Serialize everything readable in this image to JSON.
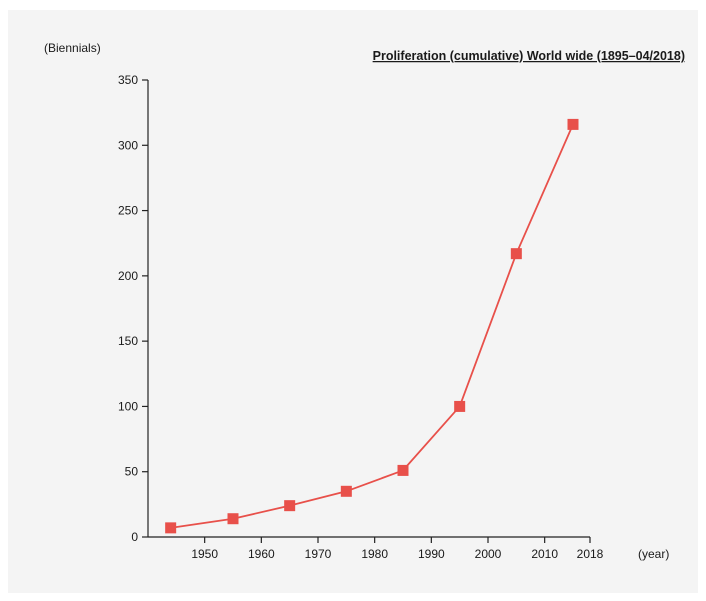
{
  "chart_data": {
    "type": "line",
    "title": "Proliferation (cumulative) World wide (1895–04/2018)",
    "ylabel": "(Biennials)",
    "xlabel": "(year)",
    "ylim": [
      0,
      350
    ],
    "xlim": [
      1940,
      2018
    ],
    "y_ticks": [
      0,
      50,
      100,
      150,
      200,
      250,
      300,
      350
    ],
    "x_ticks": [
      1950,
      1960,
      1970,
      1980,
      1990,
      2000,
      2010,
      2018
    ],
    "x_tick_labels": [
      "1950",
      "1960",
      "1970",
      "1980",
      "1990",
      "2000",
      "2010",
      "2018"
    ],
    "y_tick_labels": [
      "0",
      "50",
      "100",
      "150",
      "200",
      "250",
      "300",
      "350"
    ],
    "grid": false,
    "marker": "square",
    "color": "#e8504a",
    "series": [
      {
        "x": [
          1944,
          1955,
          1965,
          1975,
          1985,
          1995,
          2005,
          2015
        ],
        "values": [
          7,
          14,
          24,
          35,
          51,
          100,
          217,
          316
        ]
      }
    ]
  }
}
